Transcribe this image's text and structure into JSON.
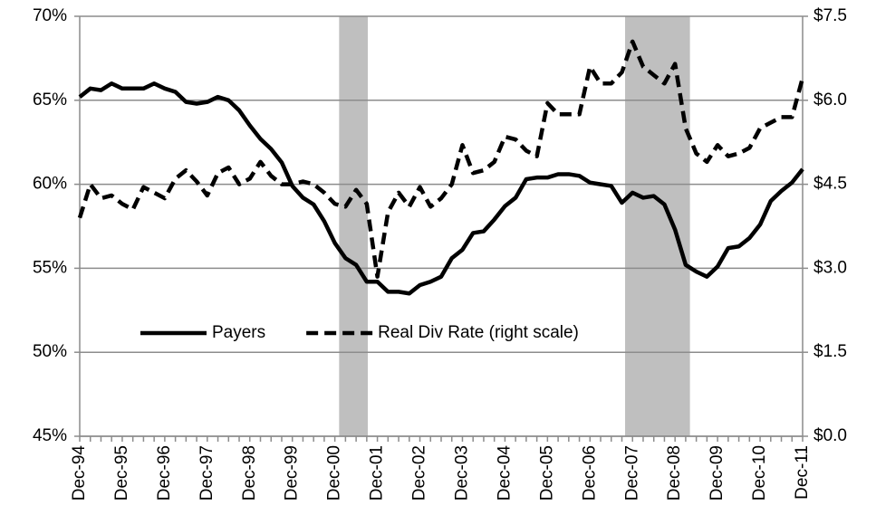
{
  "chart_data": {
    "type": "line",
    "categories": [
      "Dec-94",
      null,
      null,
      null,
      "Dec-95",
      null,
      null,
      null,
      "Dec-96",
      null,
      null,
      null,
      "Dec-97",
      null,
      null,
      null,
      "Dec-98",
      null,
      null,
      null,
      "Dec-99",
      null,
      null,
      null,
      "Dec-00",
      null,
      null,
      null,
      "Dec-01",
      null,
      null,
      null,
      "Dec-02",
      null,
      null,
      null,
      "Dec-03",
      null,
      null,
      null,
      "Dec-04",
      null,
      null,
      null,
      "Dec-05",
      null,
      null,
      null,
      "Dec-06",
      null,
      null,
      null,
      "Dec-07",
      null,
      null,
      null,
      "Dec-08",
      null,
      null,
      null,
      "Dec-09",
      null,
      null,
      null,
      "Dec-10",
      null,
      null,
      null,
      "Dec-11"
    ],
    "series": [
      {
        "name": "Payers",
        "color": "#000000",
        "dash": false,
        "values": [
          65.2,
          65.7,
          65.6,
          66.0,
          65.7,
          65.7,
          65.7,
          66.0,
          65.7,
          65.5,
          64.9,
          64.8,
          64.9,
          65.2,
          65.0,
          64.4,
          63.5,
          62.7,
          62.1,
          61.3,
          59.9,
          59.2,
          58.8,
          57.8,
          56.5,
          55.6,
          55.2,
          54.2,
          54.2,
          53.6,
          53.6,
          53.5,
          54.0,
          54.2,
          54.5,
          55.6,
          56.1,
          57.1,
          57.2,
          57.9,
          58.7,
          59.2,
          60.3,
          60.4,
          60.4,
          60.6,
          60.6,
          60.5,
          60.1,
          60.0,
          59.9,
          58.9,
          59.5,
          59.2,
          59.3,
          58.8,
          57.3,
          55.2,
          54.8,
          54.5,
          55.1,
          56.2,
          56.3,
          56.8,
          57.6,
          59.0,
          59.6,
          60.1,
          60.9
        ]
      },
      {
        "name": "Real Div Rate (right scale)",
        "color": "#000000",
        "dash": true,
        "axis": "y2",
        "values": [
          3.9,
          4.5,
          4.25,
          4.3,
          4.15,
          4.05,
          4.45,
          4.35,
          4.25,
          4.6,
          4.75,
          4.55,
          4.3,
          4.7,
          4.8,
          4.5,
          4.6,
          4.9,
          4.65,
          4.5,
          4.5,
          4.55,
          4.5,
          4.35,
          4.15,
          4.1,
          4.4,
          4.15,
          2.85,
          4.0,
          4.35,
          4.1,
          4.45,
          4.1,
          4.25,
          4.5,
          5.2,
          4.7,
          4.75,
          4.9,
          5.35,
          5.3,
          5.1,
          5.0,
          5.95,
          5.75,
          5.75,
          5.75,
          6.6,
          6.3,
          6.3,
          6.5,
          7.05,
          6.6,
          6.45,
          6.3,
          6.65,
          5.5,
          5.05,
          4.9,
          5.2,
          5.0,
          5.05,
          5.15,
          5.5,
          5.6,
          5.7,
          5.7,
          6.4
        ]
      }
    ],
    "shaded_ranges": [
      [
        24.4,
        27.1
      ],
      [
        51.3,
        57.4
      ]
    ],
    "shade_color": "#bfbfbf",
    "ylim": [
      45,
      70
    ],
    "yticks": [
      {
        "value": 45,
        "label": "45%"
      },
      {
        "value": 50,
        "label": "50%"
      },
      {
        "value": 55,
        "label": "55%"
      },
      {
        "value": 60,
        "label": "60%"
      },
      {
        "value": 65,
        "label": "65%"
      },
      {
        "value": 70,
        "label": "70%"
      }
    ],
    "y2lim": [
      0,
      7.5
    ],
    "y2ticks": [
      {
        "value": 0,
        "label": "$0.0"
      },
      {
        "value": 1.5,
        "label": "$1.5"
      },
      {
        "value": 3,
        "label": "$3.0"
      },
      {
        "value": 4.5,
        "label": "$4.5"
      },
      {
        "value": 6,
        "label": "$6.0"
      },
      {
        "value": 7.5,
        "label": "$7.5"
      }
    ],
    "grid": true,
    "legend": "center-left"
  }
}
